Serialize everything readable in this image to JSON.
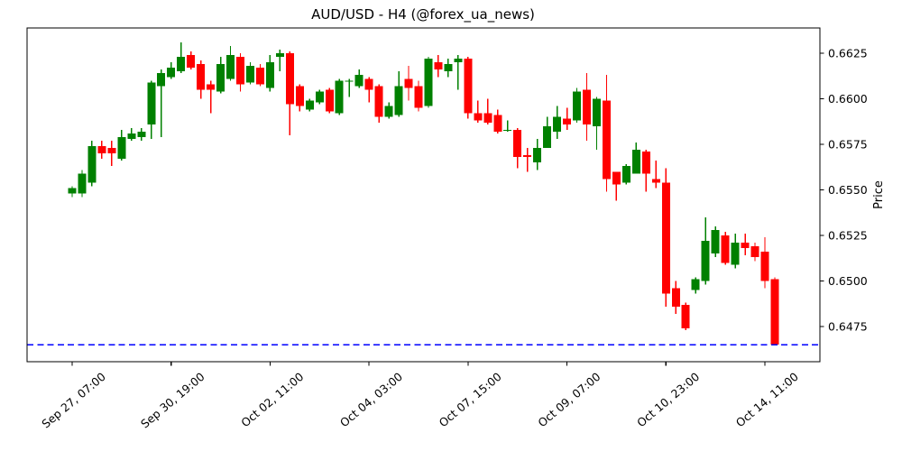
{
  "chart_data": {
    "type": "candlestick",
    "title": "AUD/USD - H4 (@forex_ua_news)",
    "ylabel_right": "Price",
    "timeframe": "H4",
    "grid": false,
    "legend": null,
    "ylim": [
      0.6456,
      0.6639
    ],
    "y_ticks": [
      "0.6625",
      "0.6600",
      "0.6575",
      "0.6550",
      "0.6525",
      "0.6500",
      "0.6475"
    ],
    "y_tick_values": [
      0.6625,
      0.66,
      0.6575,
      0.655,
      0.6525,
      0.65,
      0.6475
    ],
    "x_ticks": [
      {
        "i": 0,
        "label": "Sep 27, 07:00"
      },
      {
        "i": 10,
        "label": "Sep 30, 19:00"
      },
      {
        "i": 20,
        "label": "Oct 02, 11:00"
      },
      {
        "i": 30,
        "label": "Oct 04, 03:00"
      },
      {
        "i": 40,
        "label": "Oct 07, 15:00"
      },
      {
        "i": 50,
        "label": "Oct 09, 07:00"
      },
      {
        "i": 60,
        "label": "Oct 10, 23:00"
      },
      {
        "i": 70,
        "label": "Oct 14, 11:00"
      }
    ],
    "support_line": {
      "price": 0.6465,
      "color": "#0000ff",
      "style": "dashed"
    },
    "colors": {
      "up": "#008000",
      "down": "#ff0000",
      "axes": "#000000",
      "background": "#ffffff"
    },
    "candles_ohlc": [
      [
        0.6548,
        0.6552,
        0.6546,
        0.6551
      ],
      [
        0.6548,
        0.6561,
        0.6546,
        0.6559
      ],
      [
        0.6554,
        0.6577,
        0.6552,
        0.6574
      ],
      [
        0.6574,
        0.6577,
        0.6567,
        0.657
      ],
      [
        0.6573,
        0.6577,
        0.6563,
        0.657
      ],
      [
        0.6567,
        0.6583,
        0.6566,
        0.6579
      ],
      [
        0.6578,
        0.6584,
        0.6577,
        0.6581
      ],
      [
        0.6579,
        0.6584,
        0.6577,
        0.6582
      ],
      [
        0.6586,
        0.661,
        0.6578,
        0.6609
      ],
      [
        0.6607,
        0.6616,
        0.6579,
        0.6614
      ],
      [
        0.6612,
        0.662,
        0.6611,
        0.6617
      ],
      [
        0.6615,
        0.6631,
        0.6614,
        0.6623
      ],
      [
        0.6624,
        0.6626,
        0.6616,
        0.6617
      ],
      [
        0.6619,
        0.6621,
        0.66,
        0.6605
      ],
      [
        0.6608,
        0.661,
        0.6592,
        0.6605
      ],
      [
        0.6604,
        0.6623,
        0.6603,
        0.6619
      ],
      [
        0.6611,
        0.6629,
        0.661,
        0.6624
      ],
      [
        0.6623,
        0.6625,
        0.6604,
        0.6608
      ],
      [
        0.6609,
        0.662,
        0.6608,
        0.6618
      ],
      [
        0.6617,
        0.6619,
        0.6607,
        0.6608
      ],
      [
        0.6606,
        0.6624,
        0.6604,
        0.662
      ],
      [
        0.6623,
        0.6627,
        0.6615,
        0.6625
      ],
      [
        0.6625,
        0.6626,
        0.658,
        0.6597
      ],
      [
        0.6607,
        0.6608,
        0.6593,
        0.6596
      ],
      [
        0.6594,
        0.66,
        0.6593,
        0.6599
      ],
      [
        0.6598,
        0.6605,
        0.6597,
        0.6604
      ],
      [
        0.6605,
        0.6606,
        0.6592,
        0.6593
      ],
      [
        0.6592,
        0.6611,
        0.6591,
        0.661
      ],
      [
        0.661,
        0.6611,
        0.6601,
        0.661
      ],
      [
        0.6607,
        0.6616,
        0.6606,
        0.6613
      ],
      [
        0.6611,
        0.6612,
        0.6598,
        0.6605
      ],
      [
        0.6607,
        0.6608,
        0.6587,
        0.659
      ],
      [
        0.659,
        0.6598,
        0.6589,
        0.6596
      ],
      [
        0.6591,
        0.6615,
        0.659,
        0.6607
      ],
      [
        0.6611,
        0.6618,
        0.6599,
        0.6606
      ],
      [
        0.6607,
        0.661,
        0.6593,
        0.6595
      ],
      [
        0.6596,
        0.6623,
        0.6595,
        0.6622
      ],
      [
        0.662,
        0.6624,
        0.6612,
        0.6616
      ],
      [
        0.6615,
        0.6622,
        0.6612,
        0.6619
      ],
      [
        0.662,
        0.6624,
        0.6605,
        0.6622
      ],
      [
        0.6622,
        0.6623,
        0.6589,
        0.6592
      ],
      [
        0.6592,
        0.6599,
        0.6587,
        0.6588
      ],
      [
        0.6592,
        0.66,
        0.6586,
        0.6587
      ],
      [
        0.6591,
        0.6594,
        0.6581,
        0.6582
      ],
      [
        0.6583,
        0.6588,
        0.6582,
        0.6583
      ],
      [
        0.6583,
        0.6584,
        0.6562,
        0.6568
      ],
      [
        0.6569,
        0.6573,
        0.656,
        0.6568
      ],
      [
        0.6565,
        0.6578,
        0.6561,
        0.6573
      ],
      [
        0.6573,
        0.659,
        0.6573,
        0.6585
      ],
      [
        0.6582,
        0.6596,
        0.6578,
        0.659
      ],
      [
        0.6589,
        0.6595,
        0.6583,
        0.6586
      ],
      [
        0.6588,
        0.6606,
        0.6587,
        0.6604
      ],
      [
        0.6605,
        0.6614,
        0.6577,
        0.6586
      ],
      [
        0.6585,
        0.6601,
        0.6572,
        0.66
      ],
      [
        0.6599,
        0.6613,
        0.6549,
        0.6556
      ],
      [
        0.656,
        0.656,
        0.6544,
        0.6553
      ],
      [
        0.6554,
        0.6564,
        0.6553,
        0.6563
      ],
      [
        0.6559,
        0.6576,
        0.6559,
        0.6572
      ],
      [
        0.6571,
        0.6572,
        0.6549,
        0.6559
      ],
      [
        0.6556,
        0.6566,
        0.6551,
        0.6554
      ],
      [
        0.6554,
        0.6562,
        0.6486,
        0.6493
      ],
      [
        0.6496,
        0.65,
        0.6482,
        0.6486
      ],
      [
        0.6487,
        0.6488,
        0.6473,
        0.6474
      ],
      [
        0.6495,
        0.6502,
        0.6493,
        0.6501
      ],
      [
        0.65,
        0.6535,
        0.6498,
        0.6522
      ],
      [
        0.6515,
        0.653,
        0.6513,
        0.6528
      ],
      [
        0.6525,
        0.6527,
        0.6509,
        0.651
      ],
      [
        0.6509,
        0.6526,
        0.6507,
        0.6521
      ],
      [
        0.6521,
        0.6526,
        0.6514,
        0.6518
      ],
      [
        0.6519,
        0.6521,
        0.6511,
        0.6513
      ],
      [
        0.6516,
        0.6524,
        0.6496,
        0.65
      ],
      [
        0.6501,
        0.6502,
        0.6465,
        0.6465
      ]
    ]
  }
}
